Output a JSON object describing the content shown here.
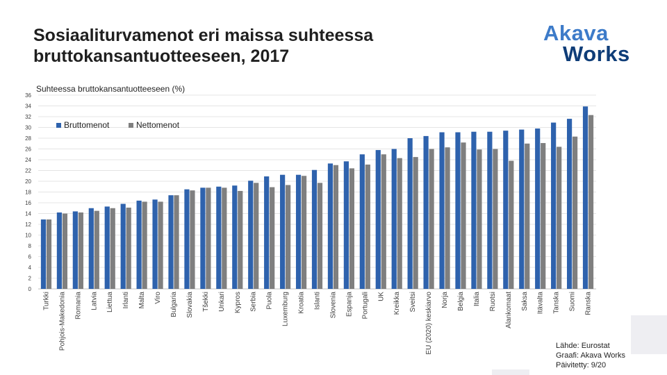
{
  "title_line1": "Sosiaaliturvamenot eri maissa suhteessa",
  "title_line2": "bruttokansantuotteeseen, 2017",
  "logo": {
    "line1": "Akava",
    "line2": "Works"
  },
  "footer": {
    "source": "Lähde: Eurostat",
    "graph": "Graafi: Akava Works",
    "updated": "Päivitetty: 9/20"
  },
  "colors": {
    "gross": "#2e62ad",
    "net": "#7f7f7f",
    "logo_top": "#3d7bc9",
    "logo_bottom": "#0f3d78"
  },
  "chart_data": {
    "type": "bar",
    "title": "Suhteessa bruttokansantuotteeseen (%)",
    "xlabel": "",
    "ylabel": "",
    "ylim": [
      0,
      36
    ],
    "yticks": [
      0,
      2,
      4,
      6,
      8,
      10,
      12,
      14,
      16,
      18,
      20,
      22,
      24,
      26,
      28,
      30,
      32,
      34,
      36
    ],
    "grid": true,
    "legend_position": "top-left",
    "categories": [
      "Turkki",
      "Pohjois-Makedonia",
      "Romania",
      "Latvia",
      "Liettua",
      "Irlanti",
      "Malta",
      "Viro",
      "Bulgaria",
      "Slovakia",
      "Tšekki",
      "Unkari",
      "Kypros",
      "Serbia",
      "Puola",
      "Luxemburg",
      "Kroatia",
      "Islanti",
      "Slovenia",
      "Espanja",
      "Portugali",
      "UK",
      "Kreikka",
      "Sveitsi",
      "EU (2020) keskiarvo",
      "Norja",
      "Belgia",
      "Italia",
      "Ruotsi",
      "Alankomaat",
      "Saksa",
      "Itävalta",
      "Tanska",
      "Suomi",
      "Ranska"
    ],
    "series": [
      {
        "name": "Bruttomenot",
        "values": [
          12.9,
          14.2,
          14.4,
          15.0,
          15.3,
          15.8,
          16.4,
          16.6,
          17.4,
          18.5,
          18.8,
          19.0,
          19.2,
          20.1,
          20.9,
          21.2,
          21.2,
          22.1,
          23.3,
          23.7,
          25.0,
          25.8,
          26.0,
          28.0,
          28.4,
          29.1,
          29.1,
          29.2,
          29.2,
          29.4,
          29.6,
          29.8,
          30.9,
          31.6,
          33.9
        ]
      },
      {
        "name": "Nettomenot",
        "values": [
          12.9,
          14.0,
          14.2,
          14.5,
          15.0,
          15.1,
          16.2,
          16.2,
          17.4,
          18.3,
          18.8,
          18.8,
          18.2,
          19.7,
          18.9,
          19.3,
          21.0,
          19.7,
          23.0,
          22.4,
          23.1,
          25.0,
          24.3,
          24.5,
          26.0,
          26.3,
          27.2,
          25.9,
          26.0,
          23.8,
          27.0,
          27.1,
          26.4,
          28.3,
          32.3
        ]
      }
    ]
  }
}
